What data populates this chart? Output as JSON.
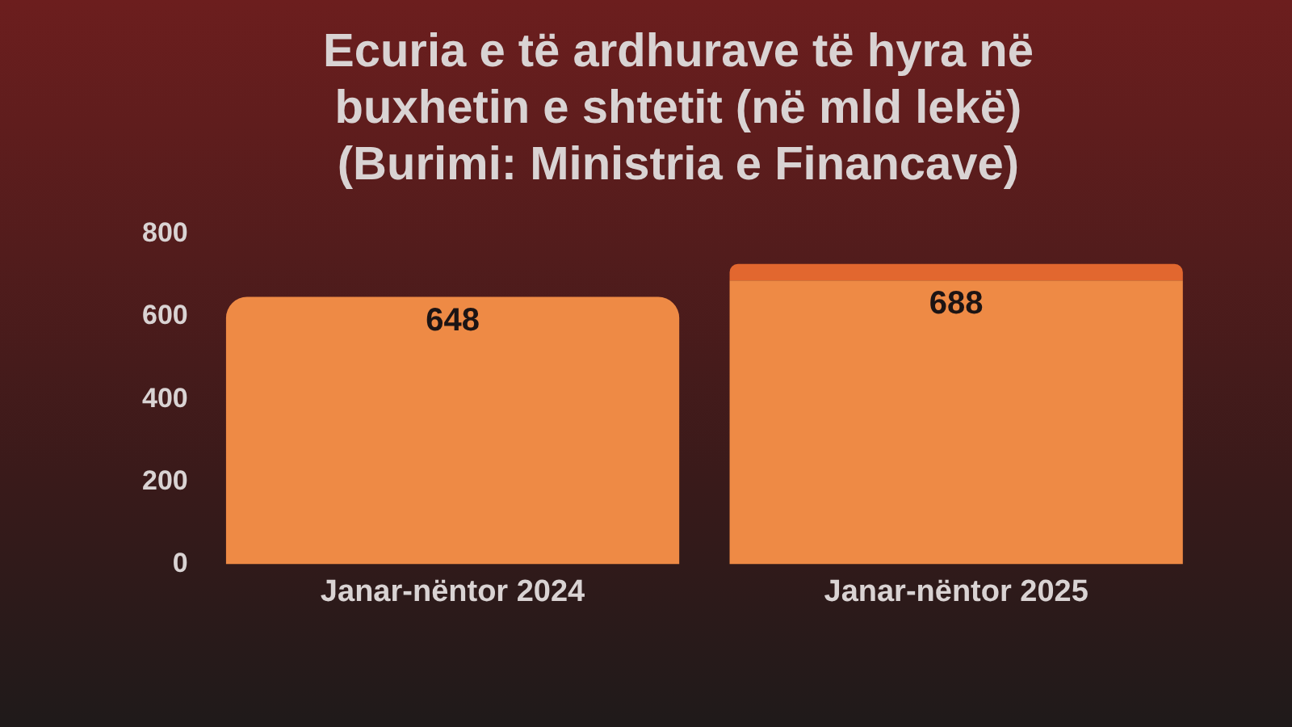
{
  "chart_data": {
    "type": "bar",
    "title": "Ecuria e të ardhurave të hyra në buxhetin e shtetit (në mld lekë)",
    "annotations": [
      "(Burimi: Ministria e Financave)"
    ],
    "categories": [
      "Janar-nëntor 2024",
      "Janar-nëntor 2025"
    ],
    "stacked": true,
    "series": [
      {
        "color": "#ee8a45",
        "values": [
          648,
          688
        ],
        "value_labels": [
          "648",
          "688"
        ]
      },
      {
        "color": "#e2672f",
        "values": [
          null,
          40
        ]
      }
    ],
    "ylim": [
      0,
      800
    ],
    "yticks": [
      0,
      200,
      400,
      600,
      800
    ],
    "grid": false,
    "legend": false
  }
}
